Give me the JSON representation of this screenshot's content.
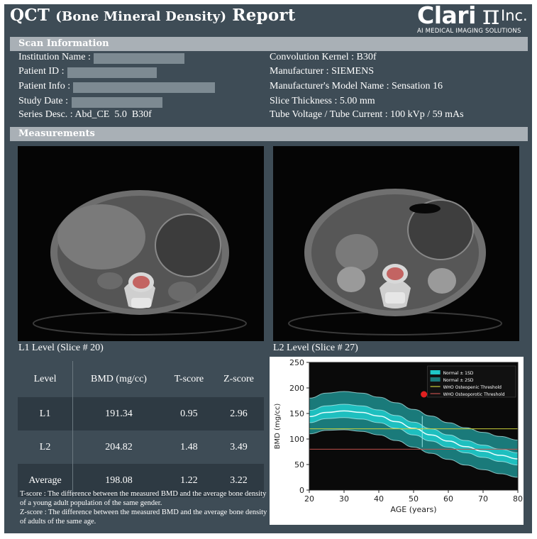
{
  "report_title": {
    "prefix": "QCT",
    "paren": "(Bone Mineral Density)",
    "suffix": "Report"
  },
  "logo": {
    "brand": "Clari",
    "pi": "π",
    "inc": "Inc.",
    "tagline": "AI MEDICAL IMAGING SOLUTIONS"
  },
  "scan_info": {
    "header": "Scan Information",
    "left": [
      {
        "label": "Institution Name :",
        "value": ""
      },
      {
        "label": "Patient ID :",
        "value": ""
      },
      {
        "label": "Patient Info :",
        "value": ""
      },
      {
        "label": "Study Date :",
        "value": ""
      },
      {
        "label": "Series Desc. :",
        "value": "Abd_CE  5.0  B30f"
      }
    ],
    "right": [
      {
        "label": "Convolution Kernel :",
        "value": "B30f"
      },
      {
        "label": "Manufacturer :",
        "value": "SIEMENS"
      },
      {
        "label": "Manufacturer's Model Name :",
        "value": "Sensation 16"
      },
      {
        "label": "Slice Thickness :",
        "value": "5.00 mm"
      },
      {
        "label": "Tube Voltage / Tube Current  :",
        "value": "100 kVp / 59 mAs"
      }
    ]
  },
  "measurements": {
    "header": "Measurements",
    "image_captions": [
      "L1 Level (Slice # 20)",
      "L2 Level (Slice # 27)"
    ],
    "table": {
      "columns": [
        "Level",
        "BMD (mg/cc)",
        "T-score",
        "Z-score"
      ],
      "rows": [
        [
          "L1",
          "191.34",
          "0.95",
          "2.96"
        ],
        [
          "L2",
          "204.82",
          "1.48",
          "3.49"
        ],
        [
          "Average",
          "198.08",
          "1.22",
          "3.22"
        ]
      ]
    },
    "notes": [
      "T-score : The difference between the measured BMD and the average bone density of a young adult population of the same gender.",
      "Z-score : The difference between the measured BMD and the average bone density of adults of the same age."
    ]
  },
  "colors": {
    "frame": "#3e4c56",
    "section_bar": "#a9b0b6",
    "band2": "#1a7a7a",
    "band1": "#1fc7c7",
    "osteopenic": "#c9cf3a",
    "osteoporotic": "#c0504d",
    "marker": "#e02020"
  },
  "chart_data": {
    "type": "line",
    "xlabel": "AGE (years)",
    "ylabel": "BMD (mg/cc)",
    "xlim": [
      20,
      80
    ],
    "ylim": [
      0,
      250
    ],
    "xticks": [
      20,
      30,
      40,
      50,
      60,
      70,
      80
    ],
    "yticks": [
      0,
      50,
      100,
      150,
      200,
      250
    ],
    "legend": [
      "Normal ± 1SD",
      "Normal ± 2SD",
      "WHO Osteopenic Threshold",
      "WHO Osteoporotic Threshold"
    ],
    "x": [
      20,
      25,
      30,
      35,
      40,
      45,
      50,
      55,
      60,
      65,
      70,
      75,
      80
    ],
    "series": [
      {
        "name": "+2SD",
        "values": [
          180,
          190,
          193,
          190,
          182,
          171,
          158,
          145,
          132,
          122,
          113,
          105,
          98
        ]
      },
      {
        "name": "+1SD",
        "values": [
          156,
          165,
          168,
          165,
          157,
          146,
          133,
          120,
          108,
          97,
          88,
          80,
          73
        ]
      },
      {
        "name": "mean",
        "values": [
          144,
          152,
          155,
          152,
          145,
          134,
          121,
          108,
          96,
          85,
          76,
          68,
          61
        ]
      },
      {
        "name": "-1SD",
        "values": [
          132,
          140,
          142,
          139,
          132,
          121,
          108,
          96,
          84,
          73,
          64,
          56,
          49
        ]
      },
      {
        "name": "-2SD",
        "values": [
          110,
          117,
          118,
          115,
          108,
          97,
          84,
          72,
          60,
          49,
          40,
          32,
          25
        ]
      }
    ],
    "thresholds": {
      "osteopenic": 120,
      "osteoporotic": 80
    },
    "patient_age_marker": 52.5
  }
}
